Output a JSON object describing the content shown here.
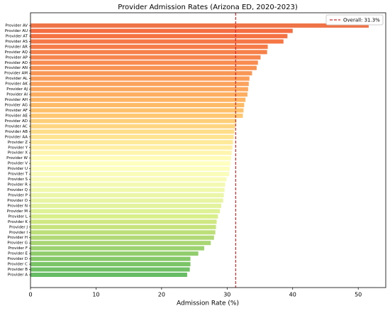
{
  "chart_data": {
    "type": "barh",
    "title": "Provider Admission Rates (Arizona ED, 2020-2023)",
    "xlabel": "Admission Rate (%)",
    "categories": [
      "Provider A",
      "Provider B",
      "Provider C",
      "Provider D",
      "Provider E",
      "Provider F",
      "Provider G",
      "Provider H",
      "Provider I",
      "Provider J",
      "Provider K",
      "Provider L",
      "Provider M",
      "Provider N",
      "Provider O",
      "Provider P",
      "Provider Q",
      "Provider R",
      "Provider S",
      "Provider T",
      "Provider U",
      "Provider V",
      "Provider W",
      "Provider X",
      "Provider Y",
      "Provider Z",
      "Provider AA",
      "Provider AB",
      "Provider AC",
      "Provider AD",
      "Provider AE",
      "Provider AF",
      "Provider AG",
      "Provider AH",
      "Provider AI",
      "Provider AJ",
      "Provider AK",
      "Provider AL",
      "Provider AM",
      "Provider AN",
      "Provider AO",
      "Provider AP",
      "Provider AQ",
      "Provider AR",
      "Provider AS",
      "Provider AT",
      "Provider AU",
      "Provider AV"
    ],
    "values": [
      23.9,
      24.3,
      24.4,
      24.4,
      25.6,
      26.5,
      27.5,
      28.0,
      28.2,
      28.3,
      28.4,
      28.6,
      28.9,
      29.1,
      29.4,
      29.5,
      29.6,
      29.7,
      29.9,
      30.3,
      30.4,
      30.5,
      30.6,
      30.7,
      30.8,
      30.9,
      31.0,
      31.1,
      31.2,
      31.4,
      32.4,
      32.5,
      32.6,
      32.8,
      33.1,
      33.2,
      33.3,
      33.4,
      33.8,
      34.5,
      34.7,
      35.1,
      36.1,
      36.2,
      38.6,
      39.2,
      40.0,
      51.6
    ],
    "colors": [
      "#66bd63",
      "#70c165",
      "#7bc567",
      "#86c96a",
      "#91cd6d",
      "#9cd270",
      "#a7d673",
      "#b1da76",
      "#bcdf79",
      "#c6e37d",
      "#d0e881",
      "#d9ef8b",
      "#dff195",
      "#e3f39d",
      "#e8f4a2",
      "#ecf6a8",
      "#f0f8ad",
      "#f3f9b2",
      "#f7fbb7",
      "#fafcba",
      "#fdfebd",
      "#ffffbf",
      "#fffbb8",
      "#fff5ae",
      "#ffefa4",
      "#fee99a",
      "#fee391",
      "#fedd88",
      "#fed681",
      "#fecf7a",
      "#fec873",
      "#fdc16c",
      "#fdbb67",
      "#fdb463",
      "#fdae61",
      "#fca85e",
      "#fba35c",
      "#fa9d59",
      "#f99756",
      "#f89253",
      "#f88c51",
      "#f7864e",
      "#f6814b",
      "#f67c49",
      "#f57746",
      "#f57244",
      "#f46d43",
      "#ef7448"
    ],
    "xlim": [
      0,
      54.2
    ],
    "xticks": [
      0,
      10,
      20,
      30,
      40,
      50
    ],
    "reference_line": {
      "value": 31.3,
      "label": "Overall: 31.3%",
      "color": "#d62728"
    },
    "legend": "upper right"
  }
}
